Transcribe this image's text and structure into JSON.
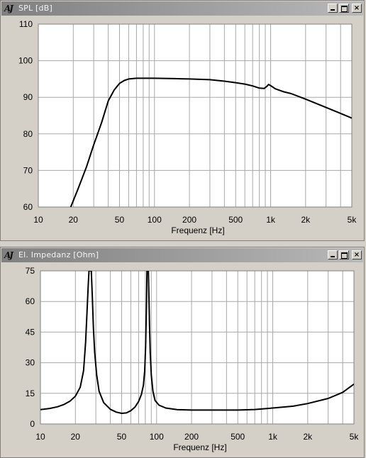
{
  "windows": {
    "spl": {
      "title": "SPL [dB]",
      "icon": "aj-app-icon",
      "close_glyph": "×"
    },
    "impedance": {
      "title": "El. Impedanz [Ohm]",
      "icon": "aj-app-icon",
      "close_glyph": "×"
    }
  },
  "colors": {
    "window_bg": "#d4d0c8",
    "plot_bg": "#ffffff",
    "grid": "#a8a8a8",
    "curve": "#000000"
  },
  "chart_data": [
    {
      "type": "line",
      "title": "SPL [dB]",
      "xlabel": "Frequenz [Hz]",
      "ylabel": "",
      "x_scale": "log",
      "xlim": [
        10,
        5000
      ],
      "ylim": [
        60,
        110
      ],
      "x_ticks": [
        10,
        20,
        50,
        100,
        200,
        500,
        1000,
        2000,
        5000
      ],
      "x_tick_labels": [
        "10",
        "20",
        "50",
        "100",
        "200",
        "500",
        "1k",
        "2k",
        "5k"
      ],
      "y_ticks": [
        60,
        70,
        80,
        90,
        100,
        110
      ],
      "y_tick_labels": [
        "60",
        "70",
        "80",
        "90",
        "100",
        "110"
      ],
      "grid": true,
      "series": [
        {
          "x": [
            19,
            22,
            26,
            30,
            35,
            40,
            45,
            50,
            55,
            60,
            70,
            80,
            100,
            150,
            200,
            300,
            400,
            500,
            600,
            700,
            800,
            880,
            930,
            960,
            1000,
            1100,
            1300,
            1500,
            2000,
            3000,
            4000,
            5000
          ],
          "y": [
            60,
            65,
            71,
            77,
            83,
            89,
            92,
            93.8,
            94.6,
            95,
            95.2,
            95.2,
            95.2,
            95.1,
            95,
            94.8,
            94.4,
            94,
            93.6,
            93.1,
            92.5,
            92.4,
            93,
            93.5,
            93.2,
            92.3,
            91.5,
            91,
            89.5,
            87.2,
            85.6,
            84.3
          ]
        }
      ]
    },
    {
      "type": "line",
      "title": "El. Impedanz [Ohm]",
      "xlabel": "Frequenz [Hz]",
      "ylabel": "",
      "x_scale": "log",
      "xlim": [
        10,
        5000
      ],
      "ylim": [
        0,
        75
      ],
      "x_ticks": [
        10,
        20,
        50,
        100,
        200,
        500,
        1000,
        2000,
        5000
      ],
      "x_tick_labels": [
        "10",
        "20",
        "50",
        "100",
        "200",
        "500",
        "1k",
        "2k",
        "5k"
      ],
      "y_ticks": [
        0,
        15,
        30,
        45,
        60,
        75
      ],
      "y_tick_labels": [
        "0",
        "15",
        "30",
        "45",
        "60",
        "75"
      ],
      "grid": true,
      "series": [
        {
          "x": [
            10,
            12,
            14,
            16,
            18,
            20,
            22,
            23.5,
            24.5,
            25.2,
            25.8,
            26.2,
            27.4,
            28,
            28.6,
            29.3,
            30.5,
            32,
            35,
            40,
            45,
            50,
            55,
            60,
            65,
            70,
            74,
            77,
            79,
            80.5,
            81.8,
            82.6,
            85,
            86,
            87,
            88.2,
            90,
            93,
            97,
            105,
            120,
            150,
            200,
            300,
            500,
            700,
            1000,
            1500,
            2000,
            3000,
            4000,
            5000
          ],
          "y": [
            7,
            7.6,
            8.4,
            9.6,
            11.2,
            13.6,
            18,
            26,
            40,
            55,
            68,
            75,
            75,
            62,
            47,
            35,
            24,
            16,
            10.5,
            7.2,
            5.8,
            5.2,
            5.4,
            6.5,
            8.2,
            11,
            14.5,
            19,
            26,
            38,
            58,
            75,
            75,
            62,
            47,
            35,
            24,
            16,
            11.5,
            9.2,
            7.8,
            7,
            6.8,
            6.8,
            6.8,
            7.1,
            7.8,
            8.7,
            10,
            12.5,
            15.5,
            19.5
          ]
        }
      ]
    }
  ]
}
